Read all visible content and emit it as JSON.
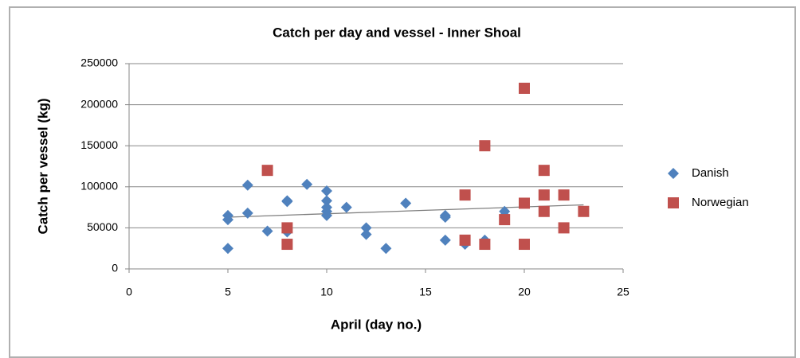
{
  "chart_data": {
    "type": "scatter",
    "title": "Catch per day and vessel - Inner Shoal",
    "x_label": "April (day no.)",
    "y_label": "Catch per vessel (kg)",
    "xlim": [
      0,
      25
    ],
    "xticks": [
      0,
      5,
      10,
      15,
      20,
      25
    ],
    "ylim": [
      0,
      250000
    ],
    "yticks": [
      0,
      50000,
      100000,
      150000,
      200000,
      250000
    ],
    "grid": true,
    "legend": "right",
    "series": [
      {
        "name": "Danish",
        "color": "#4f81bd",
        "marker": "diamond",
        "x": [
          5,
          5,
          5,
          6,
          6,
          7,
          8,
          8,
          8,
          9,
          10,
          10,
          10,
          10,
          10,
          11,
          12,
          12,
          13,
          14,
          16,
          16,
          16,
          17,
          18,
          19,
          19
        ],
        "values": [
          65000,
          60000,
          25000,
          102000,
          68000,
          46000,
          83000,
          82000,
          45000,
          103000,
          95000,
          83000,
          75000,
          70000,
          65000,
          75000,
          50000,
          42000,
          25000,
          80000,
          65000,
          63000,
          35000,
          30000,
          35000,
          70000,
          65000
        ]
      },
      {
        "name": "Norwegian",
        "color": "#c0504d",
        "marker": "square",
        "x": [
          7,
          8,
          8,
          17,
          17,
          18,
          18,
          19,
          20,
          20,
          20,
          21,
          21,
          21,
          22,
          22,
          23
        ],
        "values": [
          120000,
          50000,
          30000,
          90000,
          35000,
          150000,
          30000,
          60000,
          220000,
          80000,
          30000,
          120000,
          90000,
          70000,
          90000,
          50000,
          70000
        ]
      }
    ],
    "trendline": {
      "color": "#7f7f7f",
      "x": [
        5,
        23
      ],
      "values": [
        63000,
        78000
      ]
    }
  }
}
